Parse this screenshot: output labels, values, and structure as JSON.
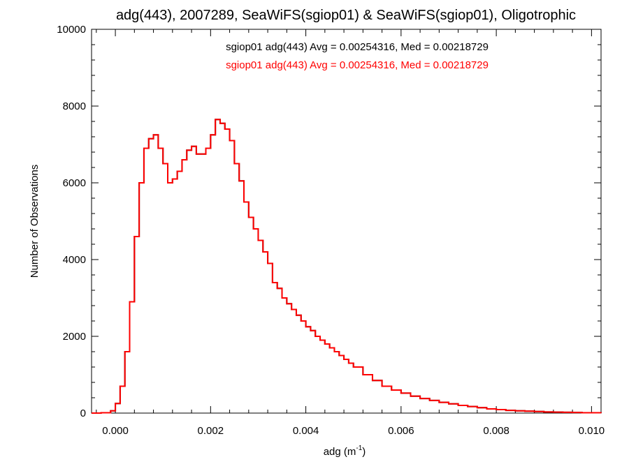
{
  "chart_data": {
    "type": "line",
    "title": "adg(443), 2007289, SeaWiFS(sgiop01) & SeaWiFS(sgiop01), Oligotrophic",
    "xlabel": "adg (m",
    "xlabel_superscript": "-1",
    "xlabel_suffix": ")",
    "ylabel": "Number of Observations",
    "xlim": [
      -0.0005,
      0.0102
    ],
    "ylim": [
      0,
      10000
    ],
    "x_ticks": [
      0.0,
      0.002,
      0.004,
      0.006,
      0.008,
      0.01
    ],
    "x_tick_labels": [
      "0.000",
      "0.002",
      "0.004",
      "0.006",
      "0.008",
      "0.010"
    ],
    "y_ticks": [
      0,
      2000,
      4000,
      6000,
      8000,
      10000
    ],
    "y_tick_labels": [
      "0",
      "2000",
      "4000",
      "6000",
      "8000",
      "10000"
    ],
    "grid": false,
    "legend_position": "top-center",
    "colors": {
      "series1": "#000000",
      "series2": "#ff0000"
    },
    "series": [
      {
        "name": "sgiop01 adg(443) Avg = 0.00254316, Med = 0.00218729",
        "color": "#000000",
        "x": [
          -0.0005,
          -0.0003,
          -0.0001,
          0.0,
          0.0001,
          0.0002,
          0.0003,
          0.0004,
          0.0005,
          0.0006,
          0.0007,
          0.0008,
          0.0009,
          0.001,
          0.0011,
          0.0012,
          0.0013,
          0.0014,
          0.0015,
          0.0016,
          0.0017,
          0.0018,
          0.0019,
          0.002,
          0.0021,
          0.0022,
          0.0023,
          0.0024,
          0.0025,
          0.0026,
          0.0027,
          0.0028,
          0.0029,
          0.003,
          0.0031,
          0.0032,
          0.0033,
          0.0034,
          0.0035,
          0.0036,
          0.0037,
          0.0038,
          0.0039,
          0.004,
          0.0041,
          0.0042,
          0.0043,
          0.0044,
          0.0045,
          0.0046,
          0.0047,
          0.0048,
          0.0049,
          0.005,
          0.0052,
          0.0054,
          0.0056,
          0.0058,
          0.006,
          0.0062,
          0.0064,
          0.0066,
          0.0068,
          0.007,
          0.0072,
          0.0074,
          0.0076,
          0.0078,
          0.008,
          0.0082,
          0.0084,
          0.0086,
          0.0088,
          0.009,
          0.0092,
          0.0094,
          0.0096,
          0.0098,
          0.01,
          0.0102
        ],
        "y": [
          0,
          10,
          60,
          250,
          700,
          1600,
          2900,
          4600,
          6000,
          6900,
          7150,
          7250,
          6900,
          6500,
          6000,
          6100,
          6300,
          6600,
          6850,
          6950,
          6750,
          6750,
          6900,
          7250,
          7650,
          7550,
          7400,
          7100,
          6500,
          6050,
          5500,
          5100,
          4800,
          4500,
          4200,
          3900,
          3400,
          3250,
          3000,
          2850,
          2700,
          2550,
          2400,
          2250,
          2150,
          2000,
          1900,
          1800,
          1700,
          1600,
          1500,
          1400,
          1300,
          1200,
          1000,
          850,
          700,
          600,
          520,
          440,
          380,
          330,
          280,
          240,
          200,
          170,
          140,
          110,
          90,
          70,
          60,
          50,
          40,
          30,
          25,
          20,
          15,
          10,
          8,
          5
        ]
      },
      {
        "name": "sgiop01 adg(443) Avg = 0.00254316, Med = 0.00218729",
        "color": "#ff0000",
        "x": [
          -0.0005,
          -0.0003,
          -0.0001,
          0.0,
          0.0001,
          0.0002,
          0.0003,
          0.0004,
          0.0005,
          0.0006,
          0.0007,
          0.0008,
          0.0009,
          0.001,
          0.0011,
          0.0012,
          0.0013,
          0.0014,
          0.0015,
          0.0016,
          0.0017,
          0.0018,
          0.0019,
          0.002,
          0.0021,
          0.0022,
          0.0023,
          0.0024,
          0.0025,
          0.0026,
          0.0027,
          0.0028,
          0.0029,
          0.003,
          0.0031,
          0.0032,
          0.0033,
          0.0034,
          0.0035,
          0.0036,
          0.0037,
          0.0038,
          0.0039,
          0.004,
          0.0041,
          0.0042,
          0.0043,
          0.0044,
          0.0045,
          0.0046,
          0.0047,
          0.0048,
          0.0049,
          0.005,
          0.0052,
          0.0054,
          0.0056,
          0.0058,
          0.006,
          0.0062,
          0.0064,
          0.0066,
          0.0068,
          0.007,
          0.0072,
          0.0074,
          0.0076,
          0.0078,
          0.008,
          0.0082,
          0.0084,
          0.0086,
          0.0088,
          0.009,
          0.0092,
          0.0094,
          0.0096,
          0.0098,
          0.01,
          0.0102
        ],
        "y": [
          0,
          10,
          60,
          250,
          700,
          1600,
          2900,
          4600,
          6000,
          6900,
          7150,
          7250,
          6900,
          6500,
          6000,
          6100,
          6300,
          6600,
          6850,
          6950,
          6750,
          6750,
          6900,
          7250,
          7650,
          7550,
          7400,
          7100,
          6500,
          6050,
          5500,
          5100,
          4800,
          4500,
          4200,
          3900,
          3400,
          3250,
          3000,
          2850,
          2700,
          2550,
          2400,
          2250,
          2150,
          2000,
          1900,
          1800,
          1700,
          1600,
          1500,
          1400,
          1300,
          1200,
          1000,
          850,
          700,
          600,
          520,
          440,
          380,
          330,
          280,
          240,
          200,
          170,
          140,
          110,
          90,
          70,
          60,
          50,
          40,
          30,
          25,
          20,
          15,
          10,
          8,
          5
        ]
      }
    ]
  }
}
